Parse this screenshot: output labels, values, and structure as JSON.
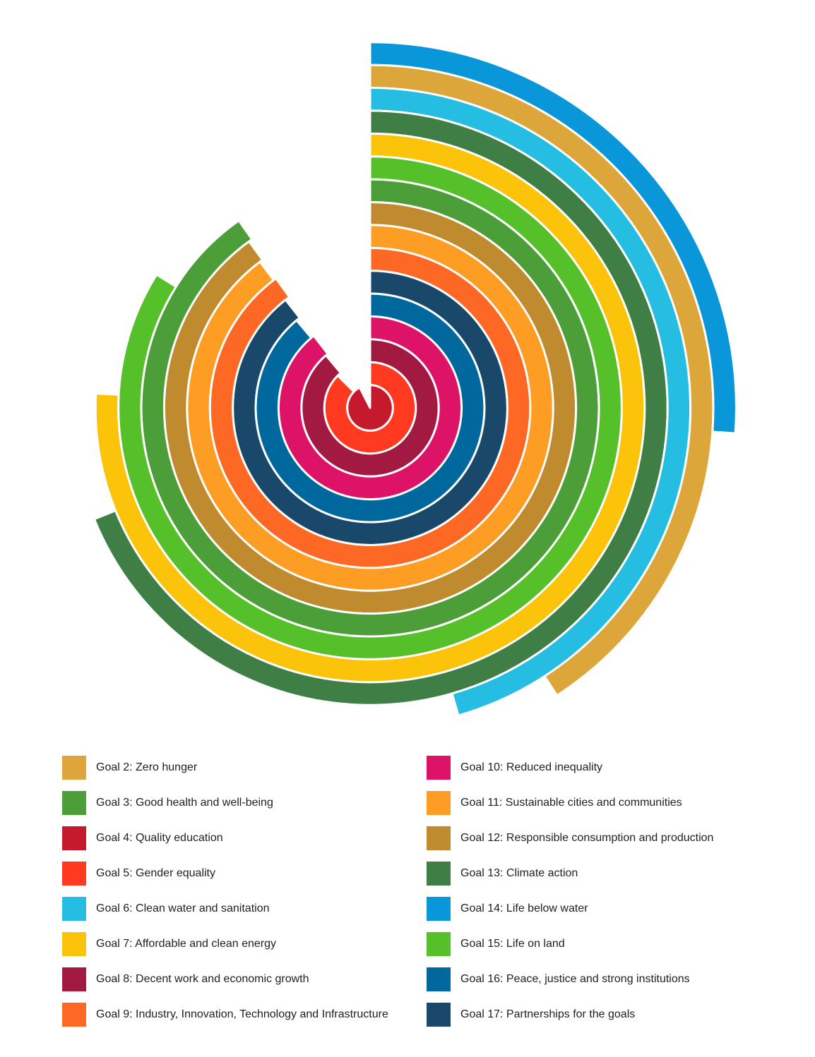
{
  "chart_data": {
    "type": "radial-bar",
    "title": "",
    "start_angle_deg": 0,
    "direction": "clockwise",
    "value_unit": "degrees of arc",
    "rings_inner_to_outer": [
      {
        "goal": "Goal 4: Quality education",
        "color": "#c5192d",
        "value": 333
      },
      {
        "goal": "Goal 5: Gender equality",
        "color": "#ff3a21",
        "value": 315
      },
      {
        "goal": "Goal 8: Decent work and economic growth",
        "color": "#a21942",
        "value": 320
      },
      {
        "goal": "Goal 10: Reduced inequality",
        "color": "#dd1367",
        "value": 322
      },
      {
        "goal": "Goal 16: Peace, justice and strong institutions",
        "color": "#00689d",
        "value": 320
      },
      {
        "goal": "Goal 17: Partnerships for the goals",
        "color": "#19486a",
        "value": 322
      },
      {
        "goal": "Goal 9: Industry, Innovation, Technology and Infrastructure",
        "color": "#fd6925",
        "value": 324
      },
      {
        "goal": "Goal 11: Sustainable cities and communities",
        "color": "#fd9d24",
        "value": 323
      },
      {
        "goal": "Goal 12: Responsible consumption and production",
        "color": "#bf8b2e",
        "value": 324
      },
      {
        "goal": "Goal 3: Good health and well-being",
        "color": "#4c9f38",
        "value": 325
      },
      {
        "goal": "Goal 15: Life on land",
        "color": "#56c02b",
        "value": 302
      },
      {
        "goal": "Goal 7: Affordable and clean energy",
        "color": "#fcc30b",
        "value": 273
      },
      {
        "goal": "Goal 13: Climate action",
        "color": "#3f7e44",
        "value": 248
      },
      {
        "goal": "Goal 6: Clean water and sanitation",
        "color": "#26bde2",
        "value": 164
      },
      {
        "goal": "Goal 2: Zero hunger",
        "color": "#dda63a",
        "value": 147
      },
      {
        "goal": "Goal 14: Life below water",
        "color": "#0a97d9",
        "value": 94
      }
    ]
  },
  "legend": {
    "left": [
      {
        "label": "Goal 2: Zero hunger",
        "color": "#dda63a"
      },
      {
        "label": "Goal 3: Good health and well-being",
        "color": "#4c9f38"
      },
      {
        "label": "Goal 4: Quality education",
        "color": "#c5192d"
      },
      {
        "label": "Goal 5: Gender equality",
        "color": "#ff3a21"
      },
      {
        "label": "Goal 6: Clean water and sanitation",
        "color": "#26bde2"
      },
      {
        "label": "Goal 7: Affordable and clean energy",
        "color": "#fcc30b"
      },
      {
        "label": "Goal 8: Decent work and economic growth",
        "color": "#a21942"
      },
      {
        "label": "Goal 9: Industry, Innovation, Technology and Infrastructure",
        "color": "#fd6925"
      }
    ],
    "right": [
      {
        "label": "Goal 10: Reduced inequality",
        "color": "#dd1367"
      },
      {
        "label": "Goal 11: Sustainable cities and communities",
        "color": "#fd9d24"
      },
      {
        "label": "Goal 12: Responsible consumption and production",
        "color": "#bf8b2e"
      },
      {
        "label": "Goal 13: Climate action",
        "color": "#3f7e44"
      },
      {
        "label": "Goal 14: Life below water",
        "color": "#0a97d9"
      },
      {
        "label": "Goal 15: Life on land",
        "color": "#56c02b"
      },
      {
        "label": "Goal 16: Peace, justice and strong institutions",
        "color": "#00689d"
      },
      {
        "label": "Goal 17: Partnerships for the goals",
        "color": "#19486a"
      }
    ]
  }
}
